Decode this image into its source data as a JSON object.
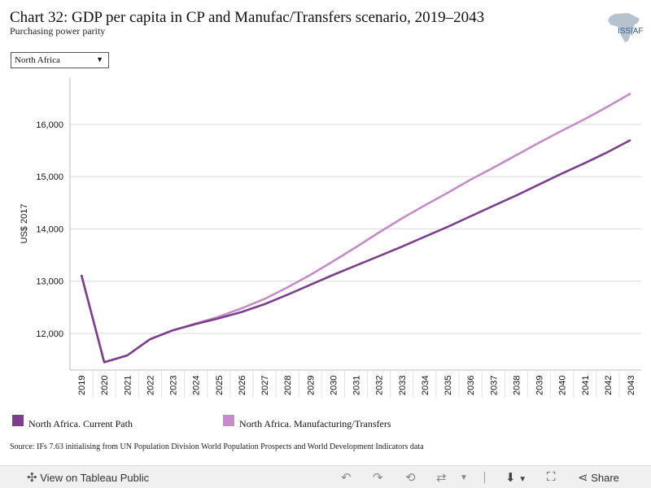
{
  "header": {
    "title": "Chart 32: GDP per capita in CP and Manufac/Transfers scenario, 2019–2043",
    "subtitle": "Purchasing power parity"
  },
  "logo": {
    "text_left": "ISS",
    "text_right": "AF",
    "accent_color": "#2f5c8f"
  },
  "filter": {
    "selected": "North Africa",
    "caret": "▼"
  },
  "chart_data": {
    "type": "line",
    "title": "",
    "xlabel": "",
    "ylabel": "US$ 2017",
    "x": [
      2019,
      2020,
      2021,
      2022,
      2023,
      2024,
      2025,
      2026,
      2027,
      2028,
      2029,
      2030,
      2031,
      2032,
      2033,
      2034,
      2035,
      2036,
      2037,
      2038,
      2039,
      2040,
      2041,
      2042,
      2043
    ],
    "ylim": [
      11300,
      16900
    ],
    "yticks": [
      12000,
      13000,
      14000,
      15000,
      16000
    ],
    "ytick_labels": [
      "12,000",
      "13,000",
      "14,000",
      "15,000",
      "16,000"
    ],
    "grid": true,
    "legend_position": "bottom",
    "series": [
      {
        "name": "North Africa. Current Path",
        "color": "#7b3f8c",
        "values": [
          13120,
          11450,
          11580,
          11890,
          12060,
          12180,
          12290,
          12410,
          12560,
          12740,
          12930,
          13120,
          13300,
          13480,
          13660,
          13850,
          14040,
          14240,
          14440,
          14640,
          14850,
          15060,
          15260,
          15470,
          15700
        ]
      },
      {
        "name": "North Africa. Manufacturing/Transfers",
        "color": "#c48dc9",
        "values": [
          13120,
          11450,
          11580,
          11890,
          12060,
          12190,
          12320,
          12480,
          12660,
          12880,
          13120,
          13380,
          13650,
          13930,
          14200,
          14450,
          14690,
          14940,
          15170,
          15410,
          15650,
          15880,
          16100,
          16340,
          16590
        ]
      }
    ]
  },
  "source": "Source: IFs 7.63 initialising from UN Population Division World Population Prospects and World Development Indicators data",
  "toolbar": {
    "view_label": "View on Tableau Public",
    "share_label": "Share"
  }
}
